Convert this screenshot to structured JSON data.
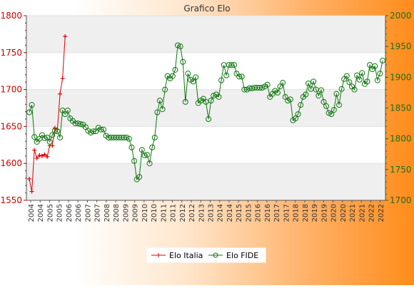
{
  "chart_data": {
    "type": "line",
    "title": "Grafico Elo",
    "y_left": {
      "min": 1550,
      "max": 1800,
      "ticks": [
        1550,
        1600,
        1650,
        1700,
        1750,
        1800
      ],
      "color": "#cc0000"
    },
    "y_right": {
      "min": 1700,
      "max": 2000,
      "ticks": [
        1700,
        1750,
        1800,
        1850,
        1900,
        1950,
        2000
      ],
      "color": "#1a6e1a"
    },
    "grid": "horizontal alternating bands",
    "legend_position": "bottom-center",
    "series": [
      {
        "name": "Elo Italia",
        "axis": "left",
        "color": "#dd0000",
        "marker": "+",
        "values": [
          1579,
          1562,
          1618,
          1607,
          1611,
          1610,
          1612,
          1609,
          1624,
          1624,
          1648,
          1646,
          1694,
          1715,
          1772
        ]
      },
      {
        "name": "Elo FIDE",
        "axis": "right",
        "color": "#117711",
        "marker": "circle",
        "values": [
          1843,
          1855,
          1803,
          1795,
          1800,
          1806,
          1801,
          1802,
          1795,
          1806,
          1813,
          1812,
          1802,
          1846,
          1840,
          1846,
          1833,
          1829,
          1825,
          1825,
          1824,
          1823,
          1819,
          1813,
          1810,
          1812,
          1812,
          1818,
          1815,
          1815,
          1805,
          1802,
          1802,
          1802,
          1802,
          1802,
          1802,
          1802,
          1802,
          1800,
          1786,
          1764,
          1734,
          1738,
          1782,
          1773,
          1774,
          1760,
          1786,
          1802,
          1843,
          1862,
          1848,
          1880,
          1902,
          1898,
          1902,
          1912,
          1952,
          1950,
          1925,
          1860,
          1906,
          1896,
          1893,
          1900,
          1858,
          1862,
          1865,
          1860,
          1832,
          1862,
          1870,
          1872,
          1868,
          1895,
          1920,
          1903,
          1920,
          1920,
          1920,
          1906,
          1901,
          1901,
          1880,
          1880,
          1882,
          1882,
          1883,
          1883,
          1883,
          1883,
          1885,
          1888,
          1868,
          1873,
          1878,
          1875,
          1885,
          1891,
          1868,
          1862,
          1864,
          1830,
          1833,
          1840,
          1855,
          1868,
          1872,
          1890,
          1881,
          1893,
          1880,
          1870,
          1879,
          1860,
          1853,
          1842,
          1840,
          1847,
          1873,
          1855,
          1881,
          1897,
          1902,
          1892,
          1885,
          1880,
          1903,
          1896,
          1907,
          1889,
          1893,
          1920,
          1913,
          1918,
          1895,
          1906,
          1927
        ]
      }
    ],
    "x_labels": [
      "2004",
      "2005",
      "2006",
      "2007",
      "2008",
      "2009",
      "2010",
      "2011",
      "2012",
      "2013",
      "2014",
      "2015",
      "2016",
      "2017",
      "2018",
      "2019",
      "2020",
      "2021",
      "2022"
    ]
  }
}
